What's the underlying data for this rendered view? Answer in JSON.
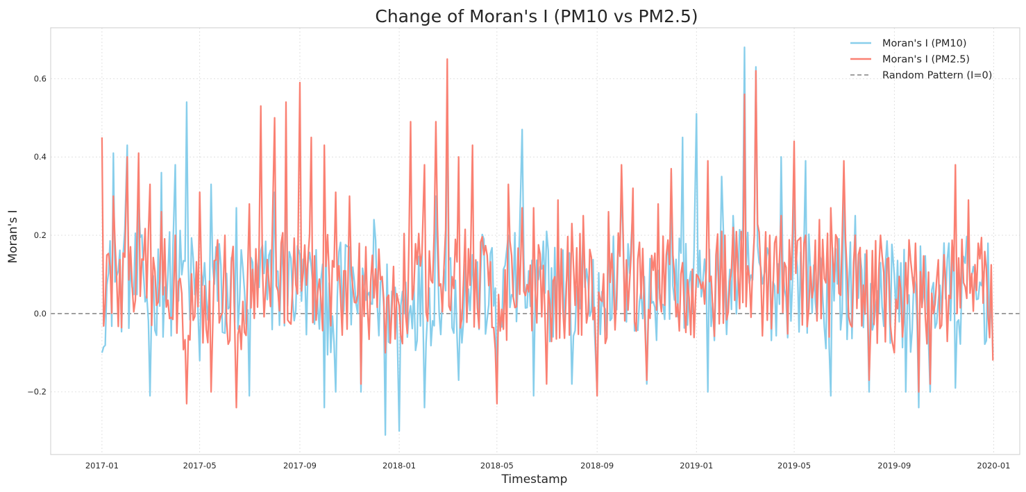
{
  "chart_data": {
    "type": "line",
    "title": "Change of Moran's I (PM10 vs PM2.5)",
    "xlabel": "Timestamp",
    "ylabel": "Moran's I",
    "xlim": [
      "2016-10-30",
      "2020-02-02"
    ],
    "ylim": [
      -0.36,
      0.73
    ],
    "x_ticks": [
      "2017-01",
      "2017-05",
      "2017-09",
      "2018-01",
      "2018-05",
      "2018-09",
      "2019-01",
      "2019-05",
      "2019-09",
      "2020-01"
    ],
    "y_ticks": [
      -0.2,
      0.0,
      0.2,
      0.4,
      0.6
    ],
    "y_tick_labels": [
      "−0.2",
      "0.0",
      "0.2",
      "0.4",
      "0.6"
    ],
    "grid": true,
    "legend_position": "top-right",
    "sampling": "approximately daily, 2017-01-01 to 2019-12-31; values read at roughly 2-week resolution with daily detail approximated",
    "reference_line": {
      "name": "Random Pattern (I=0)",
      "y": 0,
      "style": "dashed",
      "color": "#808080"
    },
    "series": [
      {
        "name": "Moran's I (PM10)",
        "color": "#87ceeb",
        "x": [
          "2017-01-01",
          "2017-01-15",
          "2017-02-01",
          "2017-02-15",
          "2017-03-01",
          "2017-03-15",
          "2017-04-01",
          "2017-04-15",
          "2017-05-01",
          "2017-05-15",
          "2017-06-01",
          "2017-06-15",
          "2017-07-01",
          "2017-07-15",
          "2017-08-01",
          "2017-08-15",
          "2017-09-01",
          "2017-09-15",
          "2017-10-01",
          "2017-10-15",
          "2017-11-01",
          "2017-11-15",
          "2017-12-01",
          "2017-12-15",
          "2018-01-01",
          "2018-01-15",
          "2018-02-01",
          "2018-02-15",
          "2018-03-01",
          "2018-03-15",
          "2018-04-01",
          "2018-04-15",
          "2018-05-01",
          "2018-05-15",
          "2018-06-01",
          "2018-06-15",
          "2018-07-01",
          "2018-07-15",
          "2018-08-01",
          "2018-08-15",
          "2018-09-01",
          "2018-09-15",
          "2018-10-01",
          "2018-10-15",
          "2018-11-01",
          "2018-11-15",
          "2018-12-01",
          "2018-12-15",
          "2019-01-01",
          "2019-01-15",
          "2019-02-01",
          "2019-02-15",
          "2019-03-01",
          "2019-03-15",
          "2019-04-01",
          "2019-04-15",
          "2019-05-01",
          "2019-05-15",
          "2019-06-01",
          "2019-06-15",
          "2019-07-01",
          "2019-07-15",
          "2019-08-01",
          "2019-08-15",
          "2019-09-01",
          "2019-09-15",
          "2019-10-01",
          "2019-10-15",
          "2019-11-01",
          "2019-11-15",
          "2019-12-01",
          "2019-12-15",
          "2019-12-31"
        ],
        "values": [
          -0.1,
          0.41,
          0.43,
          0.3,
          -0.21,
          0.36,
          0.38,
          0.54,
          -0.12,
          0.33,
          -0.05,
          0.27,
          -0.21,
          0.16,
          0.31,
          0.45,
          0.15,
          0.12,
          -0.24,
          -0.2,
          0.17,
          -0.2,
          0.24,
          -0.31,
          -0.3,
          0.02,
          -0.24,
          0.3,
          0.59,
          -0.17,
          0.15,
          0.19,
          -0.2,
          0.2,
          0.47,
          -0.21,
          0.21,
          0.2,
          -0.18,
          0.22,
          -0.2,
          0.25,
          0.33,
          0.27,
          -0.18,
          0.11,
          0.36,
          0.45,
          0.51,
          -0.2,
          0.35,
          0.25,
          0.68,
          0.63,
          0.14,
          0.4,
          0.3,
          0.39,
          0.15,
          -0.21,
          0.33,
          0.25,
          -0.2,
          0.13,
          0.1,
          -0.2,
          -0.24,
          -0.2,
          0.18,
          -0.19,
          0.16,
          0.08,
          -0.1
        ]
      },
      {
        "name": "Moran's I (PM2.5)",
        "color": "#fa8072",
        "x": [
          "2017-01-01",
          "2017-01-15",
          "2017-02-01",
          "2017-02-15",
          "2017-03-01",
          "2017-03-15",
          "2017-04-01",
          "2017-04-15",
          "2017-05-01",
          "2017-05-15",
          "2017-06-01",
          "2017-06-15",
          "2017-07-01",
          "2017-07-15",
          "2017-08-01",
          "2017-08-15",
          "2017-09-01",
          "2017-09-15",
          "2017-10-01",
          "2017-10-15",
          "2017-11-01",
          "2017-11-15",
          "2017-12-01",
          "2017-12-15",
          "2018-01-01",
          "2018-01-15",
          "2018-02-01",
          "2018-02-15",
          "2018-03-01",
          "2018-03-15",
          "2018-04-01",
          "2018-04-15",
          "2018-05-01",
          "2018-05-15",
          "2018-06-01",
          "2018-06-15",
          "2018-07-01",
          "2018-07-15",
          "2018-08-01",
          "2018-08-15",
          "2018-09-01",
          "2018-09-15",
          "2018-10-01",
          "2018-10-15",
          "2018-11-01",
          "2018-11-15",
          "2018-12-01",
          "2018-12-15",
          "2019-01-01",
          "2019-01-15",
          "2019-02-01",
          "2019-02-15",
          "2019-03-01",
          "2019-03-15",
          "2019-04-01",
          "2019-04-15",
          "2019-05-01",
          "2019-05-15",
          "2019-06-01",
          "2019-06-15",
          "2019-07-01",
          "2019-07-15",
          "2019-08-01",
          "2019-08-15",
          "2019-09-01",
          "2019-09-15",
          "2019-10-01",
          "2019-10-15",
          "2019-11-01",
          "2019-11-15",
          "2019-12-01",
          "2019-12-15",
          "2019-12-31"
        ],
        "values": [
          0.45,
          0.3,
          0.4,
          0.41,
          0.33,
          0.26,
          0.2,
          -0.23,
          0.31,
          -0.2,
          0.2,
          -0.24,
          0.28,
          0.53,
          0.5,
          0.54,
          0.59,
          0.45,
          0.43,
          0.31,
          0.3,
          -0.18,
          0.04,
          -0.1,
          0.02,
          0.49,
          0.38,
          0.49,
          0.65,
          0.4,
          0.43,
          0.15,
          -0.23,
          0.33,
          0.27,
          0.27,
          -0.18,
          0.29,
          0.23,
          0.25,
          -0.21,
          0.26,
          0.38,
          0.32,
          -0.17,
          0.28,
          0.37,
          0.13,
          0.1,
          0.39,
          0.21,
          0.22,
          0.56,
          0.62,
          0.2,
          0.25,
          0.44,
          0.2,
          0.24,
          0.27,
          0.39,
          0.2,
          -0.17,
          0.2,
          -0.1,
          0.13,
          -0.2,
          -0.18,
          0.15,
          0.38,
          0.29,
          0.14,
          -0.12
        ]
      }
    ]
  }
}
